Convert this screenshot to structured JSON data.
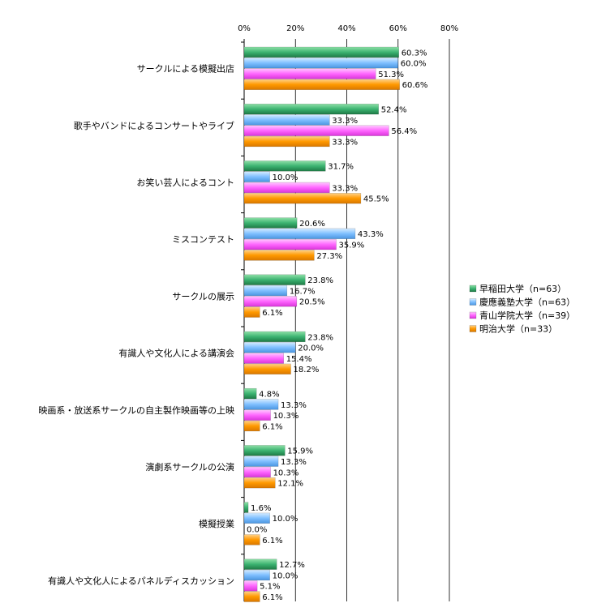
{
  "chart_data": {
    "type": "bar",
    "orientation": "horizontal",
    "categories": [
      "サークルによる模擬出店",
      "歌手やバンドによるコンサートやライブ",
      "お笑い芸人によるコント",
      "ミスコンテスト",
      "サークルの展示",
      "有識人や文化人による講演会",
      "映画系・放送系サークルの自主製作映画等の上映",
      "演劇系サークルの公演",
      "模擬授業",
      "有識人や文化人によるパネルディスカッション"
    ],
    "series": [
      {
        "name": "早稲田大学（n=63）",
        "color": "#3cb371",
        "values": [
          60.3,
          52.4,
          31.7,
          20.6,
          23.8,
          23.8,
          4.8,
          15.9,
          1.6,
          12.7
        ],
        "labels": [
          "60.3%",
          "52.4%",
          "31.7%",
          "20.6%",
          "23.8%",
          "23.8%",
          "4.8%",
          "15.9%",
          "1.6%",
          "12.7%"
        ]
      },
      {
        "name": "慶應義塾大学（n=63）",
        "color": "#7fbfff",
        "values": [
          60.0,
          33.3,
          10.0,
          43.3,
          16.7,
          20.0,
          13.3,
          13.3,
          10.0,
          10.0
        ],
        "labels": [
          "60.0%",
          "33.3%",
          "10.0%",
          "43.3%",
          "16.7%",
          "20.0%",
          "13.3%",
          "13.3%",
          "10.0%",
          "10.0%"
        ]
      },
      {
        "name": "青山学院大学（n=39）",
        "color": "#ff66ff",
        "values": [
          51.3,
          56.4,
          33.3,
          35.9,
          20.5,
          15.4,
          10.3,
          10.3,
          0.0,
          5.1
        ],
        "labels": [
          "51.3%",
          "56.4%",
          "33.3%",
          "35.9%",
          "20.5%",
          "15.4%",
          "10.3%",
          "10.3%",
          "0.0%",
          "5.1%"
        ]
      },
      {
        "name": "明治大学（n=33）",
        "color": "#ff9900",
        "values": [
          60.6,
          33.3,
          45.5,
          27.3,
          6.1,
          18.2,
          6.1,
          12.1,
          6.1,
          6.1
        ],
        "labels": [
          "60.6%",
          "33.3%",
          "45.5%",
          "27.3%",
          "6.1%",
          "18.2%",
          "6.1%",
          "12.1%",
          "6.1%",
          "6.1%"
        ]
      }
    ],
    "ticks": [
      0,
      20,
      40,
      60,
      80
    ],
    "tick_labels": [
      "0%",
      "20%",
      "40%",
      "60%",
      "80%"
    ],
    "xlim": [
      0,
      80
    ],
    "grid": true,
    "legend_position": "right"
  }
}
